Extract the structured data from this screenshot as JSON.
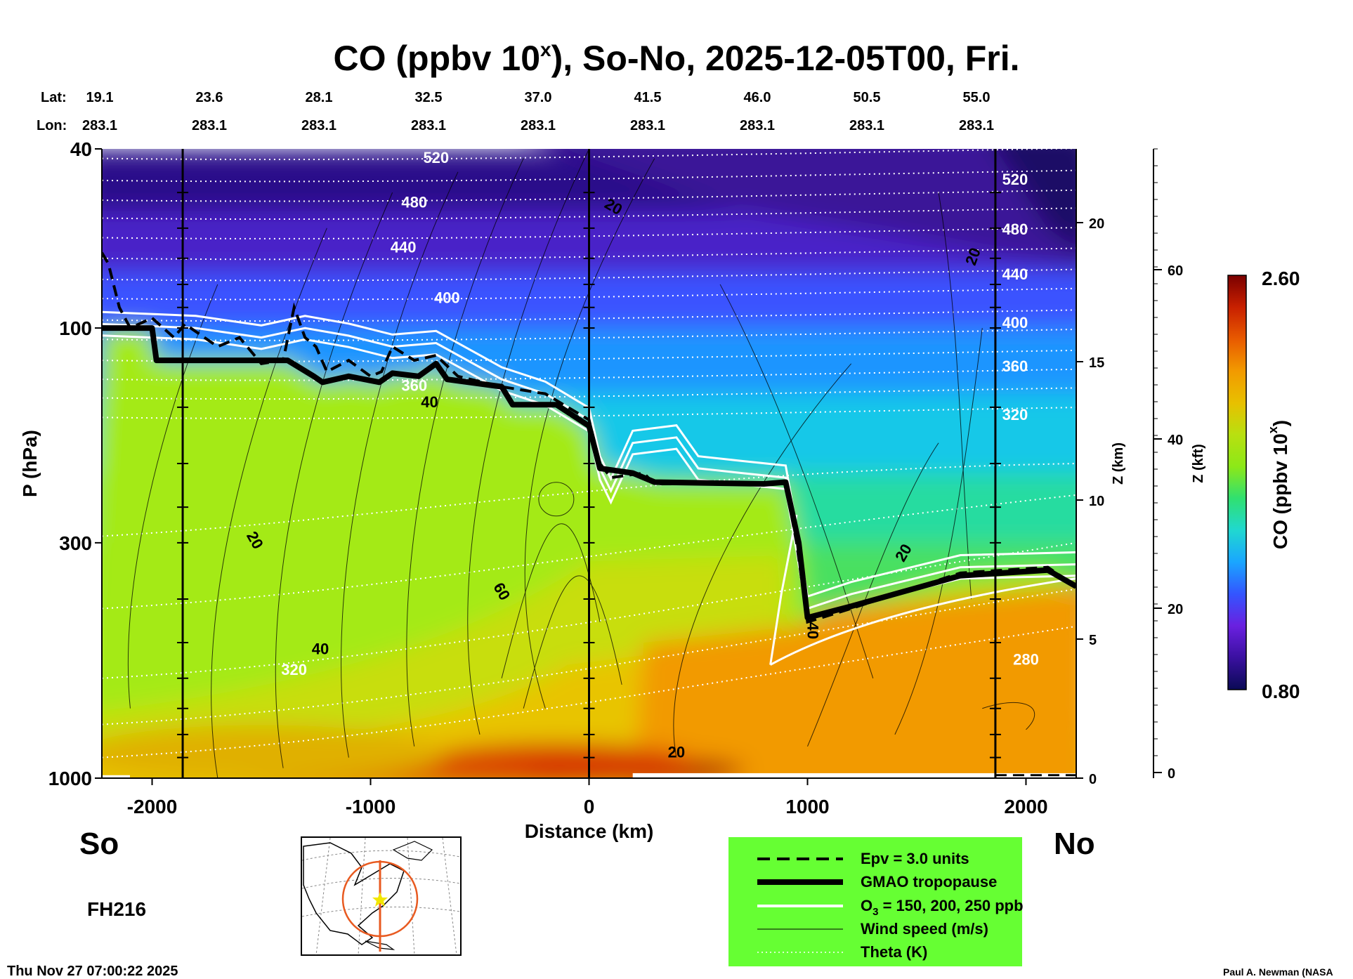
{
  "chart_data": {
    "type": "heatmap",
    "title": "CO (ppbv 10",
    "title_sup": "x",
    "title_rest": "), So-No, 2025-12-05T00, Fri.",
    "xlabel": "Distance (km)",
    "ylabel": "P (hPa)",
    "x_ticks": [
      -2000,
      -1000,
      0,
      1000,
      2000
    ],
    "xlim": [
      -2230,
      2230
    ],
    "y_ticks": [
      40,
      100,
      300,
      1000
    ],
    "ylim": [
      1000,
      40
    ],
    "z_km_label": "Z (km)",
    "z_km_ticks": [
      0,
      5,
      10,
      15,
      20
    ],
    "z_kft_label": "Z (kft)",
    "z_kft_ticks": [
      0,
      20,
      40,
      60
    ],
    "lat_label": "Lat:",
    "lon_label": "Lon:",
    "lat": [
      "19.1",
      "23.6",
      "28.1",
      "32.5",
      "37.0",
      "41.5",
      "46.0",
      "50.5",
      "55.0"
    ],
    "lon": [
      "283.1",
      "283.1",
      "283.1",
      "283.1",
      "283.1",
      "283.1",
      "283.1",
      "283.1",
      "283.1"
    ],
    "colorbar": {
      "label": "CO (ppbv 10",
      "label_sup": "x",
      "label_end": ")",
      "max": "2.60",
      "min": "0.80",
      "colors": [
        "#0a0a55",
        "#3a10a0",
        "#6a20e0",
        "#3355ff",
        "#1aa6ff",
        "#20d8d0",
        "#30e070",
        "#8ce818",
        "#b8e010",
        "#e8c000",
        "#f29a00",
        "#e85a00",
        "#c82000",
        "#7a0000"
      ]
    },
    "theta_labels": [
      {
        "text": "520",
        "x": 0,
        "p": 0
      },
      {
        "text": "480"
      },
      {
        "text": "440"
      },
      {
        "text": "400"
      },
      {
        "text": "360"
      },
      {
        "text": "320"
      },
      {
        "text": "280"
      }
    ],
    "wind_labels": [
      "20",
      "40",
      "60"
    ],
    "series": [
      {
        "name": "GMAO tropopause",
        "x": [
          -2230,
          -2000,
          -1980,
          -1380,
          -1260,
          -1220,
          -1100,
          -960,
          -900,
          -780,
          -700,
          -650,
          -400,
          -350,
          -150,
          0,
          50,
          200,
          300,
          800,
          900,
          960,
          1000,
          1200,
          1700,
          2100,
          2230
        ],
        "p": [
          100,
          100,
          118,
          118,
          128,
          132,
          128,
          132,
          126,
          128,
          120,
          130,
          135,
          148,
          148,
          165,
          205,
          210,
          220,
          222,
          220,
          300,
          440,
          415,
          355,
          345,
          375
        ]
      },
      {
        "name": "Epv = 3.0 units",
        "x": [
          -2230,
          -2200,
          -2150,
          -2100,
          -2000,
          -1900,
          -1850,
          -1700,
          -1600,
          -1500,
          -1400,
          -1350,
          -1300,
          -1250,
          -1200,
          -1100,
          -1000,
          -950,
          -900,
          -800,
          -700,
          -600,
          -400,
          -200,
          0,
          50,
          100,
          250,
          300,
          800,
          900,
          950,
          1000,
          1200,
          1700,
          2100,
          2230
        ],
        "p": [
          68,
          72,
          90,
          100,
          95,
          105,
          98,
          110,
          105,
          120,
          118,
          90,
          105,
          110,
          125,
          118,
          128,
          125,
          110,
          118,
          115,
          128,
          135,
          140,
          160,
          200,
          215,
          210,
          222,
          222,
          222,
          300,
          450,
          420,
          350,
          340,
          375
        ]
      },
      {
        "name": "O3 = 150, 200, 250 ppb",
        "x": [
          -2230,
          -1800,
          -1500,
          -1300,
          -1100,
          -900,
          -700,
          -400,
          -200,
          0,
          50,
          100,
          200,
          400,
          500,
          700,
          900,
          950,
          1000,
          1200,
          1700,
          2230
        ],
        "p": [
          98,
          100,
          105,
          100,
          104,
          110,
          108,
          130,
          140,
          160,
          205,
          230,
          180,
          175,
          205,
          210,
          215,
          295,
          420,
          390,
          340,
          335
        ]
      },
      {
        "name": "Wind speed (m/s)"
      },
      {
        "name": "Theta (K)"
      }
    ]
  },
  "legend": {
    "epv": "Epv = 3.0 units",
    "tropopause": "GMAO tropopause",
    "o3_prefix": "O",
    "o3_sub": "3",
    "o3_rest": " = 150, 200, 250 ppb",
    "wind": "Wind speed (m/s)",
    "theta": "Theta (K)",
    "bg_color": "#66ff33"
  },
  "labels": {
    "south": "So",
    "north": "No",
    "forecast_hour": "FH216",
    "timestamp": "Thu Nov 27 07:00:22 2025",
    "credit": "Paul A. Newman (NASA"
  }
}
